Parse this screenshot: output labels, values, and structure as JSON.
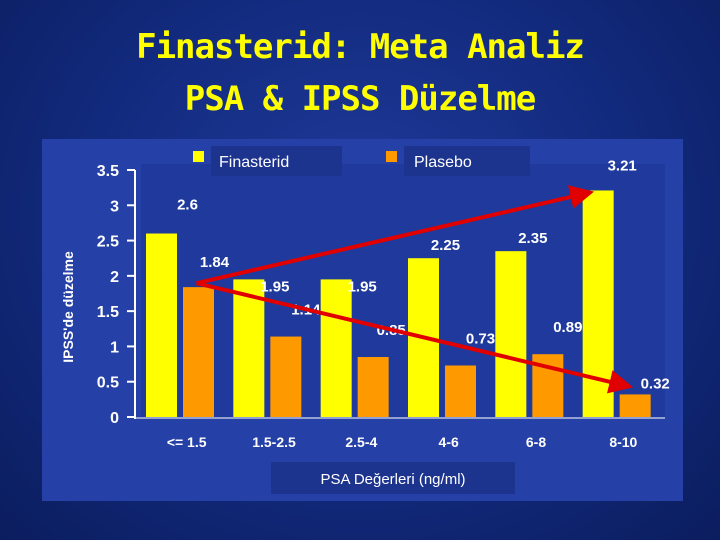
{
  "slide": {
    "title_line1": "Finasterid: Meta Analiz",
    "title_line2": "PSA & IPSS Düzelme"
  },
  "colors": {
    "title": "#ffff00",
    "finasterid": "#ffff00",
    "plasebo": "#ff9900",
    "trend": "#e00000"
  },
  "chart_data": {
    "type": "bar",
    "title": "Finasterid: Meta Analiz PSA & IPSS Düzelme",
    "xlabel": "PSA Değerleri (ng/ml)",
    "ylabel": "IPSS'de düzelme",
    "ylim": [
      0,
      3.5
    ],
    "yticks": [
      "0",
      "0.5",
      "1",
      "1.5",
      "2",
      "2.5",
      "3",
      "3.5"
    ],
    "categories": [
      "<= 1.5",
      "1.5-2.5",
      "2.5-4",
      "4-6",
      "6-8",
      "8-10"
    ],
    "series": [
      {
        "name": "Finasterid",
        "values": [
          2.6,
          1.95,
          1.95,
          2.25,
          2.35,
          3.21
        ],
        "labels": [
          "2.6",
          "1.95",
          "1.95",
          "2.25",
          "2.35",
          "3.21"
        ]
      },
      {
        "name": "Plasebo",
        "values": [
          1.84,
          1.14,
          0.85,
          0.73,
          0.89,
          0.32
        ],
        "labels": [
          "1.84",
          "1.14",
          "0.85",
          "0.73",
          "0.89",
          "0.32"
        ]
      }
    ],
    "legend": "top",
    "annotations": [
      "rising red trend arrow across Finasterid bars",
      "falling red trend arrow across Plasebo bars"
    ]
  }
}
